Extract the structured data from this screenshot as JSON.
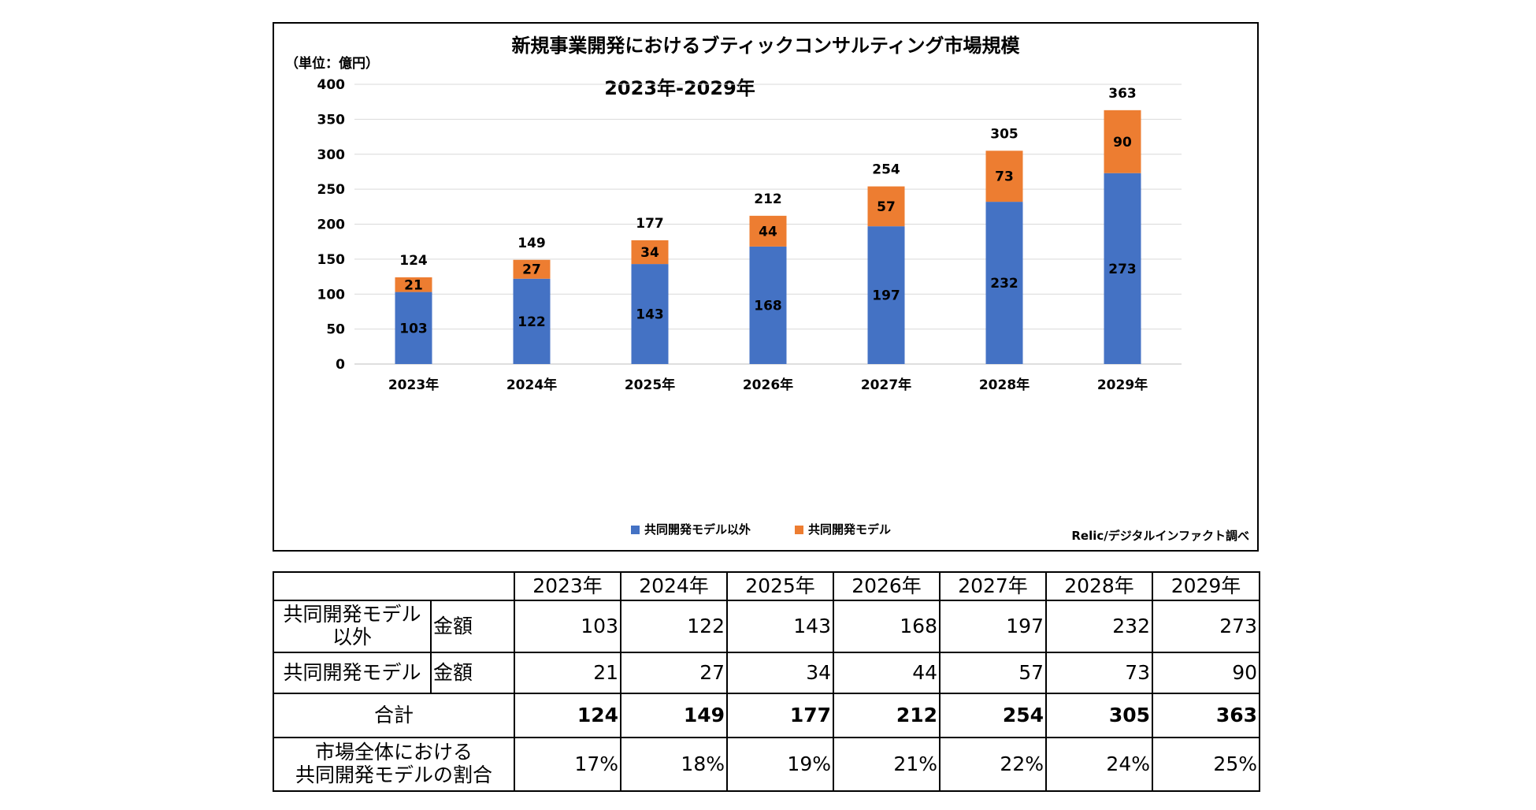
{
  "chart_data": {
    "type": "bar",
    "stacked": true,
    "title": "新規事業開発におけるブティックコンサルティング市場規模",
    "subtitle": "2023年-2029年",
    "unit_label": "（単位：億円）",
    "source": "Relic/デジタルインファクト調べ",
    "categories": [
      "2023年",
      "2024年",
      "2025年",
      "2026年",
      "2027年",
      "2028年",
      "2029年"
    ],
    "series": [
      {
        "name": "共同開発モデル以外",
        "color": "#4472C4",
        "values": [
          103,
          122,
          143,
          168,
          197,
          232,
          273
        ]
      },
      {
        "name": "共同開発モデル",
        "color": "#ED7D31",
        "values": [
          21,
          27,
          34,
          44,
          57,
          73,
          90
        ]
      }
    ],
    "totals": [
      124,
      149,
      177,
      212,
      254,
      305,
      363
    ],
    "ylim": [
      0,
      400
    ],
    "yticks": [
      0,
      50,
      100,
      150,
      200,
      250,
      300,
      350,
      400
    ],
    "grid": true,
    "legend_position": "bottom"
  },
  "table": {
    "header": [
      "2023年",
      "2024年",
      "2025年",
      "2026年",
      "2027年",
      "2028年",
      "2029年"
    ],
    "rows": [
      {
        "label_line1": "共同開発モデル",
        "label_line2": "以外",
        "sub": "金額",
        "values": [
          "103",
          "122",
          "143",
          "168",
          "197",
          "232",
          "273"
        ]
      },
      {
        "label": "共同開発モデル",
        "sub": "金額",
        "values": [
          "21",
          "27",
          "34",
          "44",
          "57",
          "73",
          "90"
        ]
      },
      {
        "label": "合計",
        "values": [
          "124",
          "149",
          "177",
          "212",
          "254",
          "305",
          "363"
        ]
      },
      {
        "label_line1": "市場全体における",
        "label_line2": "共同開発モデルの割合",
        "values": [
          "17%",
          "18%",
          "19%",
          "21%",
          "22%",
          "24%",
          "25%"
        ]
      }
    ]
  }
}
